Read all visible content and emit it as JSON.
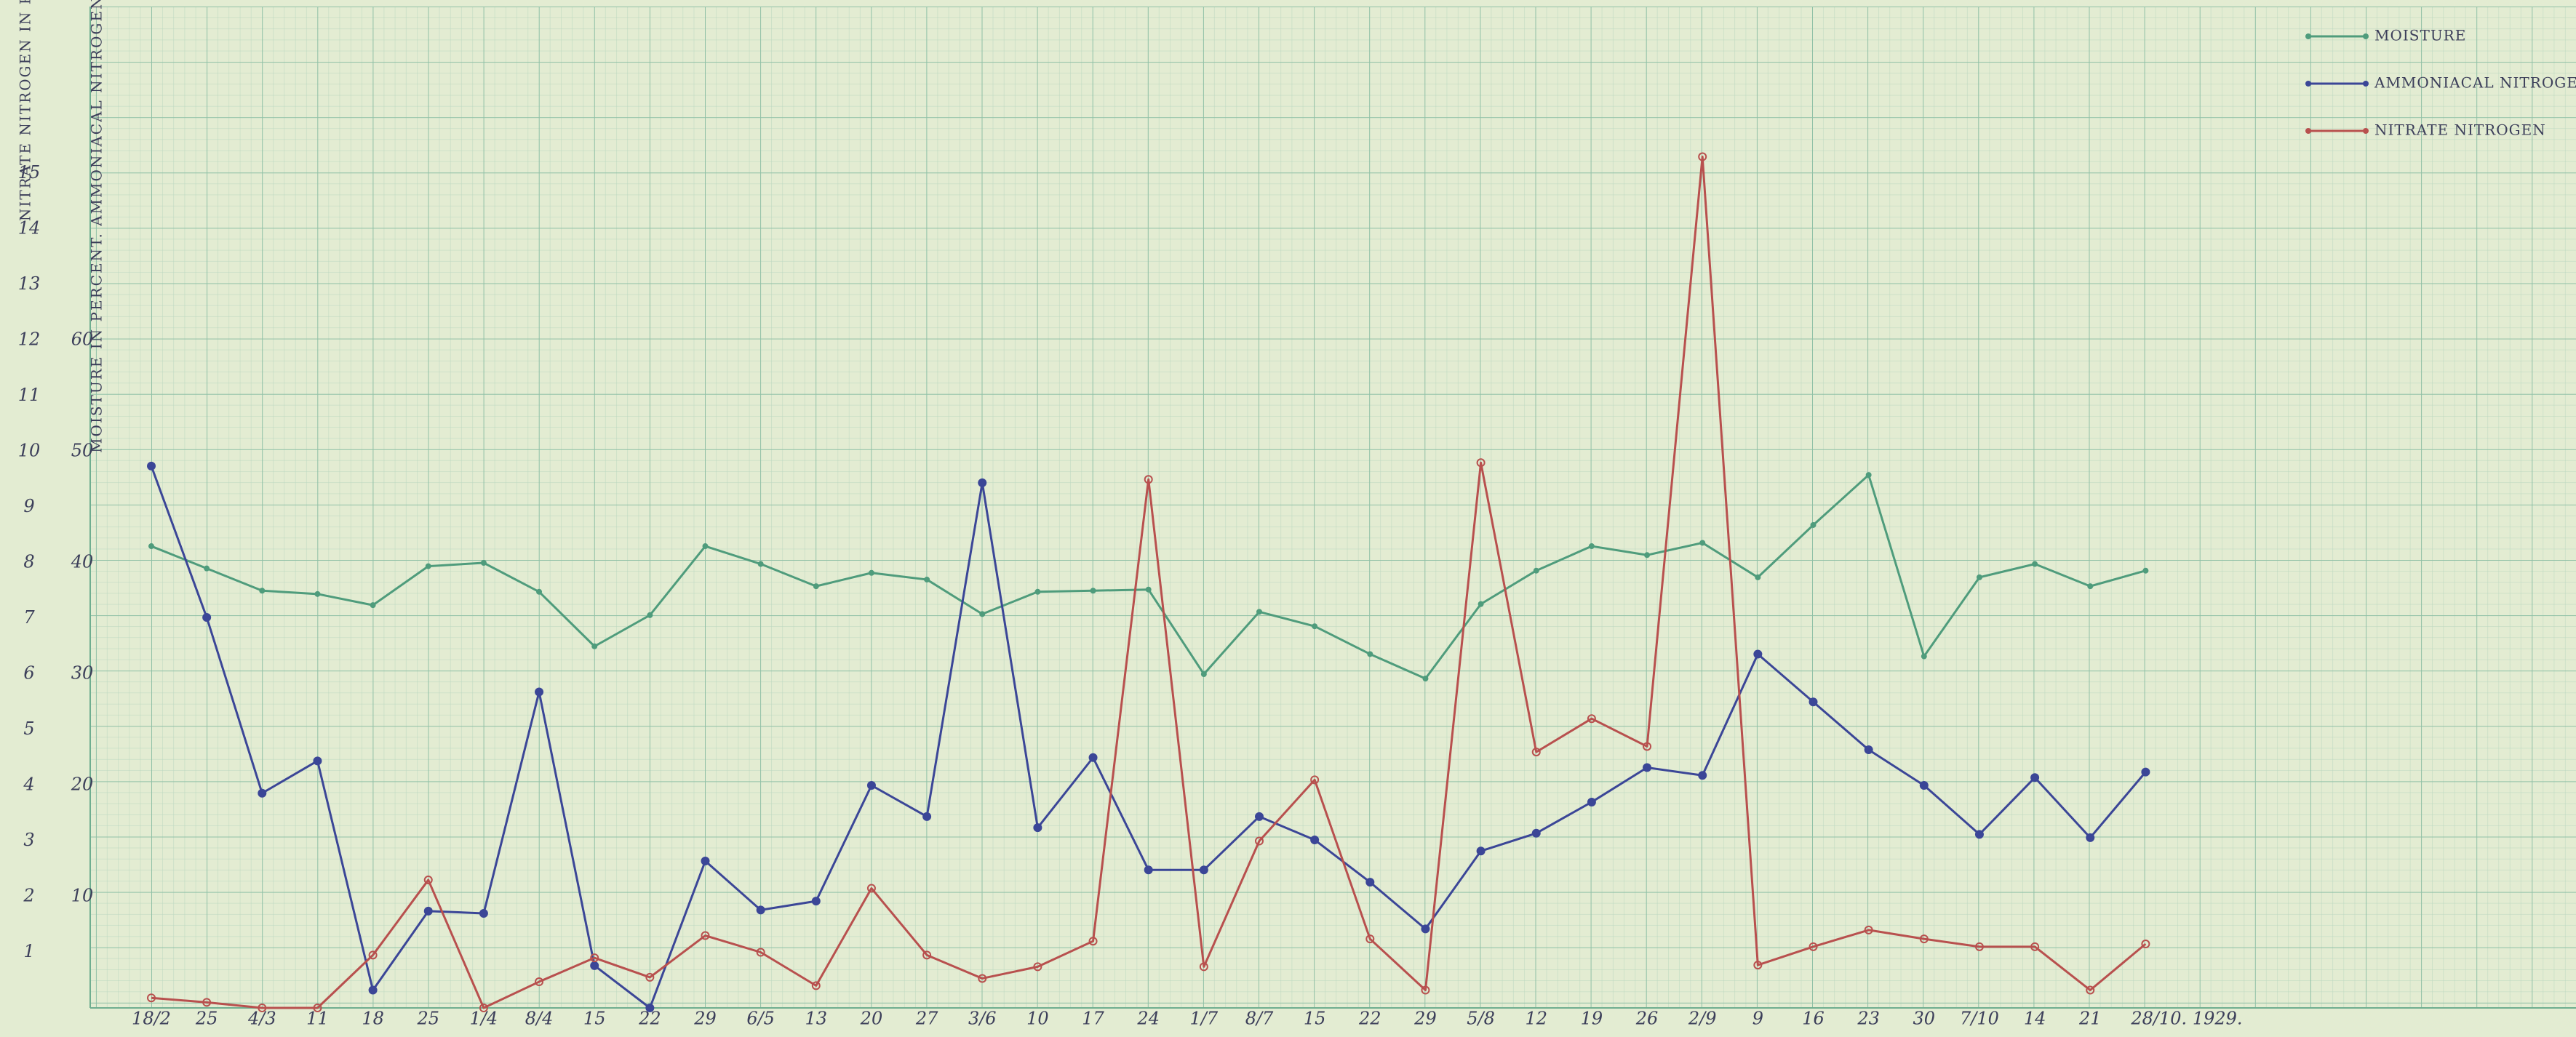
{
  "chart_data": {
    "type": "line",
    "y_axis_label": "MOISTURE IN PERCENT. AMMONIACAL NITROGEN IN P.P.M.",
    "y2_axis_label": "NITRATE NITROGEN IN P.P.M.",
    "categories": [
      "18/2",
      "25",
      "4/3",
      "11",
      "18",
      "25",
      "1/4",
      "8/4",
      "15",
      "22",
      "29",
      "6/5",
      "13",
      "20",
      "27",
      "3/6",
      "10",
      "17",
      "24",
      "1/7",
      "8/7",
      "15",
      "22",
      "29",
      "5/8",
      "12",
      "19",
      "26",
      "2/9",
      "9",
      "16",
      "23",
      "30",
      "7/10",
      "14",
      "21",
      "28/10. 1929."
    ],
    "ylim": [
      0,
      90
    ],
    "yticks": [
      10,
      20,
      30,
      40,
      50,
      60
    ],
    "y2lim": [
      0,
      18
    ],
    "y2ticks": [
      1,
      2,
      3,
      4,
      5,
      6,
      7,
      8,
      9,
      10,
      11,
      12,
      13,
      14,
      15
    ],
    "series": [
      {
        "name": "MOISTURE",
        "color": "#4f9c7c",
        "values": [
          41.5,
          39.5,
          37.5,
          37.2,
          36.2,
          39.7,
          40,
          37.4,
          32.5,
          35.3,
          41.5,
          39.9,
          37.9,
          39.1,
          38.5,
          35.4,
          37.4,
          37.5,
          37.6,
          30,
          35.6,
          34.3,
          31.8,
          29.6,
          36.3,
          39.3,
          41.5,
          40.7,
          41.8,
          38.7,
          43.4,
          47.9,
          31.6,
          38.7,
          39.9,
          37.9,
          39.3
        ]
      },
      {
        "name": "AMMONIACAL NITROGEN",
        "color": "#3b4697",
        "values": [
          48.7,
          35.1,
          19.3,
          22.2,
          1.6,
          8.7,
          8.5,
          28.4,
          3.8,
          0,
          13.2,
          8.8,
          9.6,
          20,
          17.2,
          47.2,
          16.2,
          22.5,
          12.4,
          12.4,
          17.2,
          15.1,
          11.3,
          7.1,
          14.1,
          15.7,
          18.5,
          21.6,
          20.9,
          31.8,
          27.5,
          23.2,
          20,
          15.6,
          20.7,
          15.3,
          21.2
        ]
      },
      {
        "name": "NITRATE NITROGEN",
        "color": "#b8504e",
        "axis": "y2",
        "values": [
          0.18,
          0.1,
          0,
          0,
          0.95,
          2.3,
          0,
          0.47,
          0.9,
          0.55,
          1.3,
          1.0,
          0.4,
          2.15,
          0.95,
          0.53,
          0.74,
          1.2,
          9.5,
          0.74,
          3.0,
          4.1,
          1.24,
          0.32,
          9.8,
          4.6,
          5.2,
          4.7,
          15.3,
          0.77,
          1.1,
          1.4,
          1.24,
          1.1,
          1.1,
          0.32,
          1.15
        ]
      }
    ]
  }
}
